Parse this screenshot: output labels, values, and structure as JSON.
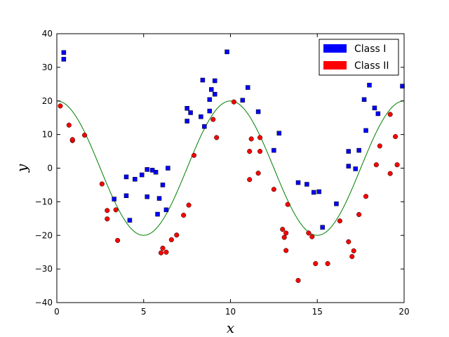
{
  "chart_data": {
    "type": "scatter",
    "title": "",
    "xlabel": "x",
    "ylabel": "y",
    "xlim": [
      0,
      20
    ],
    "ylim": [
      -40,
      40
    ],
    "xticks": [
      0,
      5,
      10,
      15,
      20
    ],
    "yticks": [
      -40,
      -30,
      -20,
      -10,
      0,
      10,
      20,
      30,
      40
    ],
    "grid": false,
    "legend_position": "top-right",
    "curve": {
      "function": "20*cos(2*pi*x/10)",
      "color": "#008000",
      "samples": 200
    },
    "series": [
      {
        "name": "Class I",
        "marker": "square",
        "color": "#0000ff",
        "points": [
          [
            0.4,
            34.4
          ],
          [
            0.4,
            32.4
          ],
          [
            3.3,
            -9.2
          ],
          [
            4.0,
            -2.6
          ],
          [
            4.0,
            -8.2
          ],
          [
            4.2,
            -15.5
          ],
          [
            4.5,
            -3.3
          ],
          [
            4.9,
            -2.0
          ],
          [
            5.2,
            -0.4
          ],
          [
            5.2,
            -8.5
          ],
          [
            5.5,
            -0.6
          ],
          [
            5.7,
            -1.2
          ],
          [
            5.8,
            -13.7
          ],
          [
            5.9,
            -9.0
          ],
          [
            6.1,
            -5.0
          ],
          [
            6.3,
            -12.4
          ],
          [
            6.4,
            0.0
          ],
          [
            7.5,
            17.8
          ],
          [
            7.5,
            14.0
          ],
          [
            7.7,
            16.5
          ],
          [
            8.3,
            15.3
          ],
          [
            8.4,
            26.2
          ],
          [
            8.5,
            12.4
          ],
          [
            8.8,
            20.4
          ],
          [
            8.8,
            17.0
          ],
          [
            8.9,
            23.4
          ],
          [
            9.1,
            26.0
          ],
          [
            9.1,
            22.0
          ],
          [
            9.8,
            34.6
          ],
          [
            10.7,
            20.2
          ],
          [
            11.0,
            24.0
          ],
          [
            11.6,
            16.8
          ],
          [
            12.5,
            5.3
          ],
          [
            12.8,
            10.4
          ],
          [
            13.9,
            -4.3
          ],
          [
            14.4,
            -4.8
          ],
          [
            14.8,
            -7.2
          ],
          [
            15.1,
            -7.0
          ],
          [
            15.3,
            -17.6
          ],
          [
            16.1,
            -10.6
          ],
          [
            16.8,
            0.6
          ],
          [
            16.8,
            5.0
          ],
          [
            17.2,
            -0.2
          ],
          [
            17.4,
            5.3
          ],
          [
            17.7,
            20.4
          ],
          [
            17.8,
            11.2
          ],
          [
            18.0,
            24.7
          ],
          [
            18.3,
            17.9
          ],
          [
            18.5,
            16.2
          ],
          [
            19.9,
            24.4
          ]
        ]
      },
      {
        "name": "Class II",
        "marker": "circle",
        "color": "#ff0000",
        "points": [
          [
            0.2,
            18.5
          ],
          [
            0.7,
            12.8
          ],
          [
            0.9,
            8.2
          ],
          [
            0.9,
            8.5
          ],
          [
            1.6,
            9.8
          ],
          [
            2.6,
            -4.7
          ],
          [
            2.9,
            -12.6
          ],
          [
            2.9,
            -15.1
          ],
          [
            3.4,
            -12.4
          ],
          [
            3.5,
            -21.5
          ],
          [
            6.0,
            -25.2
          ],
          [
            6.1,
            -23.8
          ],
          [
            6.3,
            -25.0
          ],
          [
            6.6,
            -21.3
          ],
          [
            6.9,
            -19.9
          ],
          [
            7.3,
            -14.0
          ],
          [
            7.6,
            -11.0
          ],
          [
            7.9,
            3.8
          ],
          [
            9.0,
            14.5
          ],
          [
            9.2,
            9.1
          ],
          [
            10.2,
            19.7
          ],
          [
            11.1,
            5.0
          ],
          [
            11.1,
            -3.4
          ],
          [
            11.2,
            8.7
          ],
          [
            11.6,
            -1.5
          ],
          [
            11.7,
            9.1
          ],
          [
            11.7,
            5.0
          ],
          [
            12.5,
            -6.3
          ],
          [
            13.0,
            -18.2
          ],
          [
            13.1,
            -20.6
          ],
          [
            13.2,
            -19.3
          ],
          [
            13.2,
            -24.5
          ],
          [
            13.3,
            -10.8
          ],
          [
            13.9,
            -33.4
          ],
          [
            14.5,
            -19.3
          ],
          [
            14.7,
            -20.4
          ],
          [
            14.9,
            -28.4
          ],
          [
            15.6,
            -28.4
          ],
          [
            16.3,
            -15.7
          ],
          [
            16.8,
            -21.9
          ],
          [
            17.0,
            -26.3
          ],
          [
            17.1,
            -24.6
          ],
          [
            17.4,
            -13.8
          ],
          [
            17.8,
            -8.4
          ],
          [
            18.4,
            1.0
          ],
          [
            18.6,
            6.6
          ],
          [
            19.2,
            16.0
          ],
          [
            19.2,
            -1.6
          ],
          [
            19.5,
            9.4
          ],
          [
            19.6,
            1.0
          ]
        ]
      }
    ]
  }
}
